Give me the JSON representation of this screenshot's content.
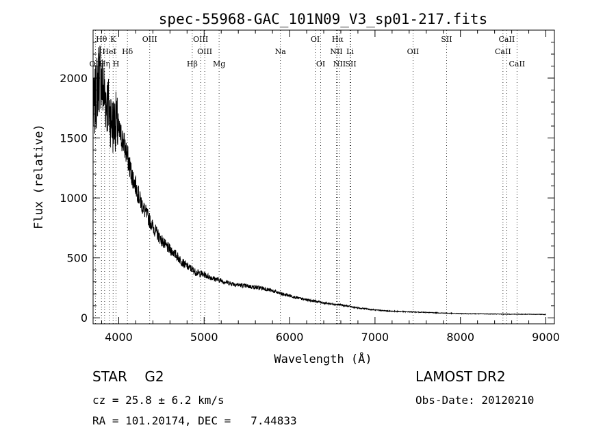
{
  "chart_data": {
    "type": "line",
    "title": "spec-55968-GAC_101N09_V3_sp01-217.fits",
    "xlabel": "Wavelength (Å)",
    "ylabel": "Flux (relative)",
    "xlim": [
      3700,
      9100
    ],
    "ylim": [
      -50,
      2400
    ],
    "x_ticks": [
      4000,
      5000,
      6000,
      7000,
      8000,
      9000
    ],
    "y_ticks": [
      0,
      500,
      1000,
      1500,
      2000
    ],
    "x_tick_labels": [
      "4000",
      "5000",
      "6000",
      "7000",
      "8000",
      "9000"
    ],
    "y_tick_labels": [
      "0",
      "500",
      "1000",
      "1500",
      "2000"
    ],
    "grid": false,
    "series": [
      {
        "x": [
          3700,
          3730,
          3760,
          3790,
          3800,
          3820,
          3840,
          3860,
          3880,
          3900,
          3930,
          3960,
          3980,
          4000,
          4050,
          4100,
          4150,
          4200,
          4250,
          4300,
          4350,
          4400,
          4450,
          4500,
          4550,
          4600,
          4650,
          4700,
          4750,
          4800,
          4850,
          4900,
          4950,
          5000,
          5100,
          5200,
          5300,
          5400,
          5500,
          5600,
          5700,
          5800,
          5900,
          6000,
          6100,
          6200,
          6300,
          6400,
          6500,
          6600,
          6700,
          6800,
          6900,
          7000,
          7200,
          7400,
          7600,
          7800,
          8000,
          8200,
          8400,
          8600,
          8800,
          9000
        ],
        "y": [
          1700,
          1820,
          2000,
          2050,
          1950,
          1900,
          1850,
          1800,
          1750,
          1700,
          1600,
          1650,
          1600,
          1550,
          1480,
          1350,
          1200,
          1100,
          980,
          900,
          830,
          760,
          700,
          650,
          600,
          570,
          540,
          500,
          460,
          430,
          410,
          380,
          370,
          360,
          330,
          310,
          290,
          275,
          265,
          255,
          245,
          225,
          200,
          185,
          165,
          150,
          140,
          125,
          115,
          108,
          95,
          82,
          75,
          65,
          55,
          50,
          45,
          40,
          35,
          33,
          32,
          30,
          30,
          28
        ]
      }
    ],
    "line_markers": [
      {
        "label": "Hθ",
        "x": 3798,
        "row": 0
      },
      {
        "label": "K",
        "x": 3934,
        "row": 0
      },
      {
        "label": "OIII",
        "x": 4363,
        "row": 0
      },
      {
        "label": "OIII",
        "x": 4959,
        "row": 0
      },
      {
        "label": "OI",
        "x": 6300,
        "row": 0
      },
      {
        "label": "Hα",
        "x": 6563,
        "row": 0
      },
      {
        "label": "SII",
        "x": 7838,
        "row": 0
      },
      {
        "label": "CaII",
        "x": 8542,
        "row": 0
      },
      {
        "label": "HeI",
        "x": 3889,
        "row": 1
      },
      {
        "label": "Hδ",
        "x": 4102,
        "row": 1
      },
      {
        "label": "OIII",
        "x": 5007,
        "row": 1
      },
      {
        "label": "Na",
        "x": 5893,
        "row": 1
      },
      {
        "label": "NII",
        "x": 6548,
        "row": 1
      },
      {
        "label": "Li",
        "x": 6708,
        "row": 1
      },
      {
        "label": "OII",
        "x": 7445,
        "row": 1
      },
      {
        "label": "CaII",
        "x": 8498,
        "row": 1
      },
      {
        "label": "OII",
        "x": 3727,
        "row": 2
      },
      {
        "label": "Hη",
        "x": 3835,
        "row": 2
      },
      {
        "label": "H",
        "x": 3969,
        "row": 2
      },
      {
        "label": "Hβ",
        "x": 4861,
        "row": 2
      },
      {
        "label": "Mg",
        "x": 5175,
        "row": 2
      },
      {
        "label": "OI",
        "x": 6364,
        "row": 2
      },
      {
        "label": "NII",
        "x": 6584,
        "row": 2
      },
      {
        "label": "SII",
        "x": 6717,
        "row": 2
      },
      {
        "label": "CaII",
        "x": 8662,
        "row": 2
      }
    ]
  },
  "info": {
    "object_line": "STAR    G2",
    "survey": "LAMOST DR2",
    "cz": "cz = 25.8 ± 6.2 km/s",
    "obs_date": "Obs-Date: 20120210",
    "ra_dec": "RA = 101.20174, DEC =   7.44833"
  }
}
